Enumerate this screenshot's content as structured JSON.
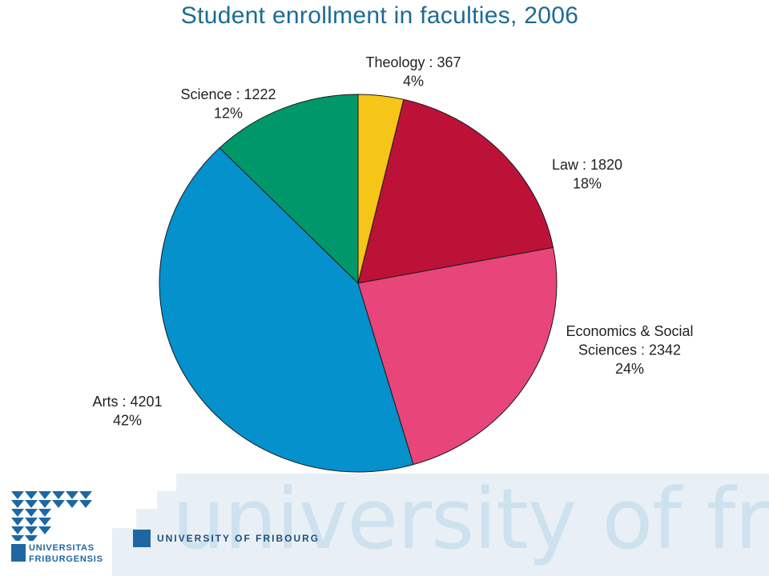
{
  "title": "Student enrollment in faculties, 2006",
  "chart_data": {
    "type": "pie",
    "title": "Student enrollment in faculties, 2006",
    "start_angle_deg": 0,
    "direction": "clockwise",
    "slices": [
      {
        "name": "Theology",
        "value": 367,
        "percent": "4%",
        "color": "#f5c518"
      },
      {
        "name": "Law",
        "value": 1820,
        "percent": "18%",
        "color": "#bd1237"
      },
      {
        "name": "Economics & Social Sciences",
        "value": 2342,
        "percent": "24%",
        "color": "#e8457a",
        "label_lines": [
          "Economics & Social",
          "Sciences : 2342",
          "24%"
        ]
      },
      {
        "name": "Arts",
        "value": 4201,
        "percent": "42%",
        "color": "#0491cc"
      },
      {
        "name": "Science",
        "value": 1222,
        "percent": "12%",
        "color": "#00976b"
      }
    ]
  },
  "branding": {
    "wordmark": "university of fribourg",
    "university_name": "UNIVERSITY OF FRIBOURG",
    "crest_text_line1": "UNIVERSITAS",
    "crest_text_line2": "FRIBURGENSIS",
    "brand_color": "#1f67a3",
    "band_color": "#e8f0f6"
  }
}
